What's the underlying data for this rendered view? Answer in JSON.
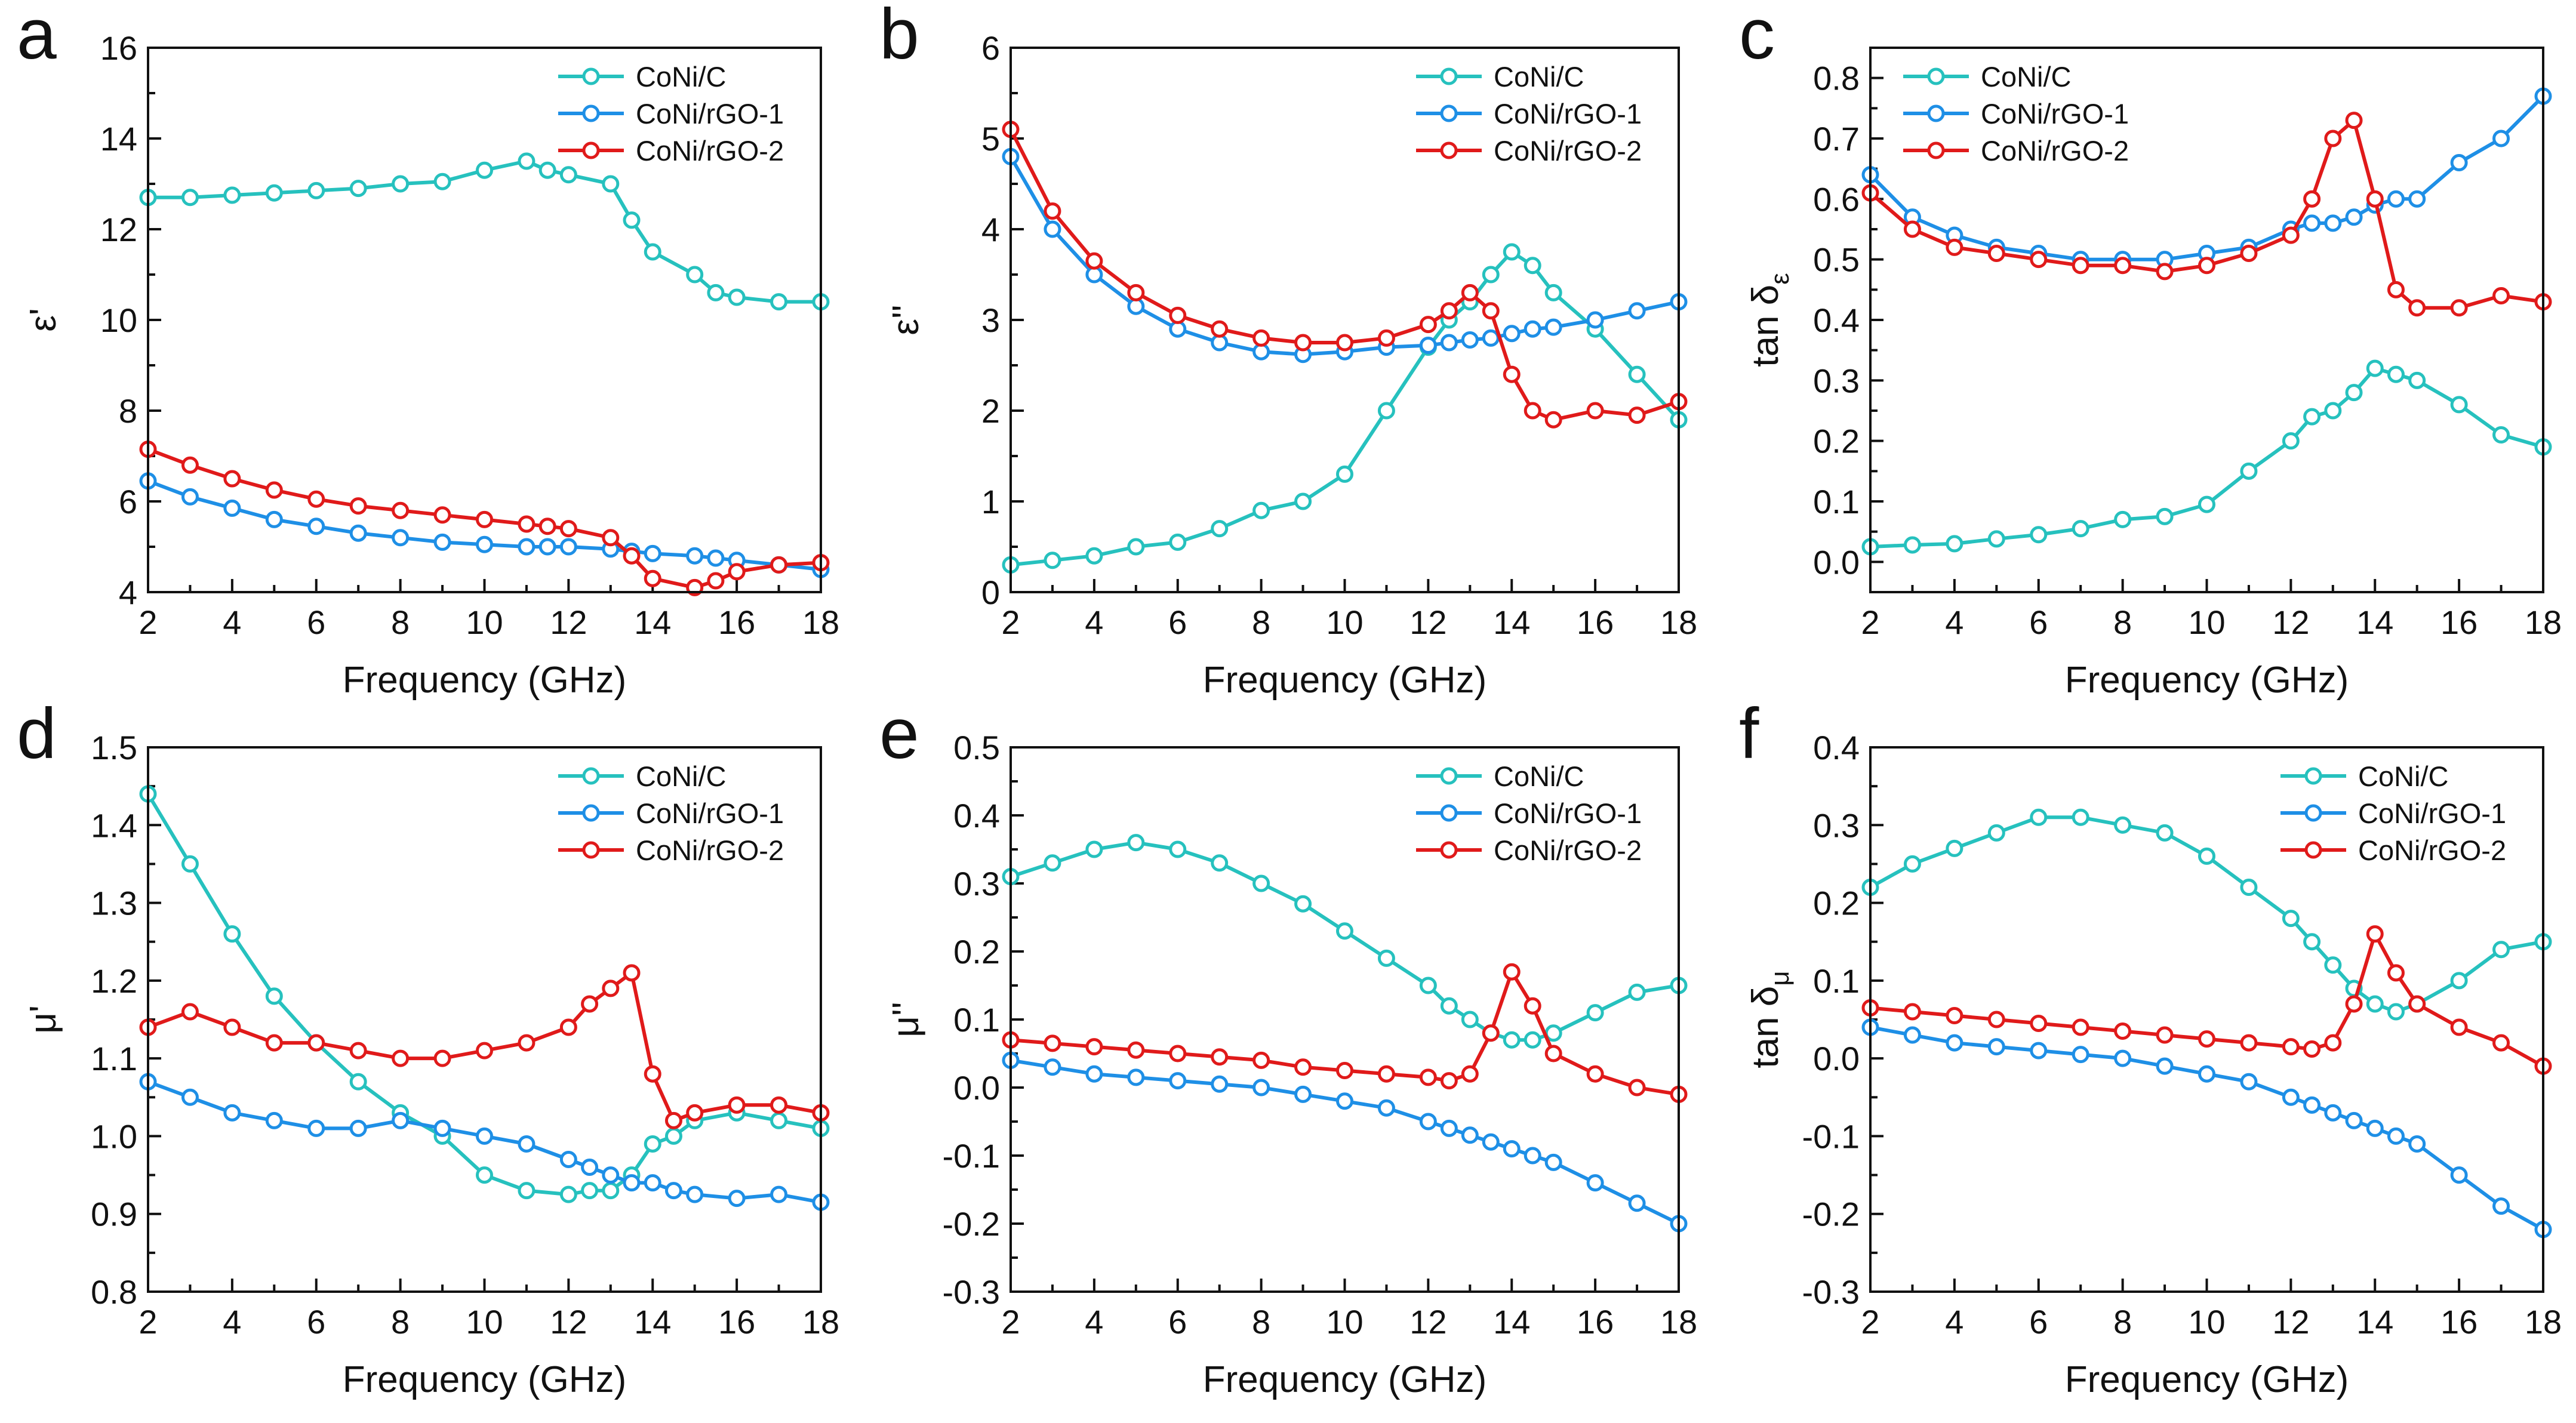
{
  "figure": {
    "series_names": [
      "CoNi/C",
      "CoNi/rGO-1",
      "CoNi/rGO-2"
    ],
    "colors": {
      "CoNi/C": "#26c1be",
      "CoNi/rGO-1": "#1e8fe6",
      "CoNi/rGO-2": "#e01a1a"
    }
  },
  "chart_data": [
    {
      "type": "line",
      "panel": "a",
      "xlabel": "Frequency (GHz)",
      "ylabel": "ε'",
      "ylabel_sub": "",
      "xlim": [
        2,
        18
      ],
      "ylim": [
        4,
        16
      ],
      "xticks": [
        2,
        4,
        6,
        8,
        10,
        12,
        14,
        16,
        18
      ],
      "yticks": [
        4,
        6,
        8,
        10,
        12,
        14,
        16
      ],
      "ytick_labels": [
        "4",
        "6",
        "8",
        "10",
        "12",
        "14",
        "16"
      ],
      "legend": "top-right",
      "x": [
        2,
        3,
        4,
        5,
        6,
        7,
        8,
        9,
        10,
        11,
        11.5,
        12,
        13,
        13.5,
        14,
        15,
        15.5,
        16,
        17,
        18
      ],
      "series": [
        {
          "name": "CoNi/C",
          "values": [
            12.7,
            12.7,
            12.75,
            12.8,
            12.85,
            12.9,
            13.0,
            13.05,
            13.3,
            13.5,
            13.3,
            13.2,
            13.0,
            12.2,
            11.5,
            11.0,
            10.6,
            10.5,
            10.4,
            10.4
          ]
        },
        {
          "name": "CoNi/rGO-1",
          "values": [
            6.45,
            6.1,
            5.85,
            5.6,
            5.45,
            5.3,
            5.2,
            5.1,
            5.05,
            5.0,
            5.0,
            5.0,
            4.95,
            4.9,
            4.85,
            4.8,
            4.75,
            4.7,
            4.6,
            4.5
          ]
        },
        {
          "name": "CoNi/rGO-2",
          "values": [
            7.15,
            6.8,
            6.5,
            6.25,
            6.05,
            5.9,
            5.8,
            5.7,
            5.6,
            5.5,
            5.45,
            5.4,
            5.2,
            4.8,
            4.3,
            4.1,
            4.25,
            4.45,
            4.6,
            4.65
          ]
        }
      ]
    },
    {
      "type": "line",
      "panel": "b",
      "xlabel": "Frequency (GHz)",
      "ylabel": "ε''",
      "ylabel_sub": "",
      "xlim": [
        2,
        18
      ],
      "ylim": [
        0,
        6
      ],
      "xticks": [
        2,
        4,
        6,
        8,
        10,
        12,
        14,
        16,
        18
      ],
      "yticks": [
        0,
        1,
        2,
        3,
        4,
        5,
        6
      ],
      "ytick_labels": [
        "0",
        "1",
        "2",
        "3",
        "4",
        "5",
        "6"
      ],
      "legend": "top-right",
      "x": [
        2,
        3,
        4,
        5,
        6,
        7,
        8,
        9,
        10,
        11,
        12,
        12.5,
        13,
        13.5,
        14,
        14.5,
        15,
        16,
        17,
        18
      ],
      "series": [
        {
          "name": "CoNi/C",
          "values": [
            0.3,
            0.35,
            0.4,
            0.5,
            0.55,
            0.7,
            0.9,
            1.0,
            1.3,
            2.0,
            2.7,
            3.0,
            3.2,
            3.5,
            3.75,
            3.6,
            3.3,
            2.9,
            2.4,
            1.9
          ]
        },
        {
          "name": "CoNi/rGO-1",
          "values": [
            4.8,
            4.0,
            3.5,
            3.15,
            2.9,
            2.75,
            2.65,
            2.62,
            2.65,
            2.7,
            2.72,
            2.75,
            2.78,
            2.8,
            2.85,
            2.9,
            2.92,
            3.0,
            3.1,
            3.2
          ]
        },
        {
          "name": "CoNi/rGO-2",
          "values": [
            5.1,
            4.2,
            3.65,
            3.3,
            3.05,
            2.9,
            2.8,
            2.75,
            2.75,
            2.8,
            2.95,
            3.1,
            3.3,
            3.1,
            2.4,
            2.0,
            1.9,
            2.0,
            1.95,
            2.1
          ]
        }
      ]
    },
    {
      "type": "line",
      "panel": "c",
      "xlabel": "Frequency (GHz)",
      "ylabel": "tan δ",
      "ylabel_sub": "ε",
      "xlim": [
        2,
        18
      ],
      "ylim": [
        -0.05,
        0.85
      ],
      "xticks": [
        2,
        4,
        6,
        8,
        10,
        12,
        14,
        16,
        18
      ],
      "yticks": [
        0.0,
        0.1,
        0.2,
        0.3,
        0.4,
        0.5,
        0.6,
        0.7,
        0.8
      ],
      "ytick_labels": [
        "0.0",
        "0.1",
        "0.2",
        "0.3",
        "0.4",
        "0.5",
        "0.6",
        "0.7",
        "0.8"
      ],
      "legend": "top-left",
      "x": [
        2,
        3,
        4,
        5,
        6,
        7,
        8,
        9,
        10,
        11,
        12,
        12.5,
        13,
        13.5,
        14,
        14.5,
        15,
        16,
        17,
        18
      ],
      "series": [
        {
          "name": "CoNi/C",
          "values": [
            0.025,
            0.028,
            0.03,
            0.038,
            0.045,
            0.055,
            0.07,
            0.075,
            0.095,
            0.15,
            0.2,
            0.24,
            0.25,
            0.28,
            0.32,
            0.31,
            0.3,
            0.26,
            0.21,
            0.19
          ]
        },
        {
          "name": "CoNi/rGO-1",
          "values": [
            0.64,
            0.57,
            0.54,
            0.52,
            0.51,
            0.5,
            0.5,
            0.5,
            0.51,
            0.52,
            0.55,
            0.56,
            0.56,
            0.57,
            0.59,
            0.6,
            0.6,
            0.66,
            0.7,
            0.77
          ]
        },
        {
          "name": "CoNi/rGO-2",
          "values": [
            0.61,
            0.55,
            0.52,
            0.51,
            0.5,
            0.49,
            0.49,
            0.48,
            0.49,
            0.51,
            0.54,
            0.6,
            0.7,
            0.73,
            0.6,
            0.45,
            0.42,
            0.42,
            0.44,
            0.43
          ]
        }
      ]
    },
    {
      "type": "line",
      "panel": "d",
      "xlabel": "Frequency (GHz)",
      "ylabel": "μ'",
      "ylabel_sub": "",
      "xlim": [
        2,
        18
      ],
      "ylim": [
        0.8,
        1.5
      ],
      "xticks": [
        2,
        4,
        6,
        8,
        10,
        12,
        14,
        16,
        18
      ],
      "yticks": [
        0.8,
        0.9,
        1.0,
        1.1,
        1.2,
        1.3,
        1.4,
        1.5
      ],
      "ytick_labels": [
        "0.8",
        "0.9",
        "1.0",
        "1.1",
        "1.2",
        "1.3",
        "1.4",
        "1.5"
      ],
      "legend": "top-right",
      "x": [
        2,
        3,
        4,
        5,
        6,
        7,
        8,
        9,
        10,
        11,
        12,
        12.5,
        13,
        13.5,
        14,
        14.5,
        15,
        16,
        17,
        18
      ],
      "series": [
        {
          "name": "CoNi/C",
          "values": [
            1.44,
            1.35,
            1.26,
            1.18,
            1.12,
            1.07,
            1.03,
            1.0,
            0.95,
            0.93,
            0.925,
            0.93,
            0.93,
            0.95,
            0.99,
            1.0,
            1.02,
            1.03,
            1.02,
            1.01
          ]
        },
        {
          "name": "CoNi/rGO-1",
          "values": [
            1.07,
            1.05,
            1.03,
            1.02,
            1.01,
            1.01,
            1.02,
            1.01,
            1.0,
            0.99,
            0.97,
            0.96,
            0.95,
            0.94,
            0.94,
            0.93,
            0.925,
            0.92,
            0.925,
            0.915
          ]
        },
        {
          "name": "CoNi/rGO-2",
          "values": [
            1.14,
            1.16,
            1.14,
            1.12,
            1.12,
            1.11,
            1.1,
            1.1,
            1.11,
            1.12,
            1.14,
            1.17,
            1.19,
            1.21,
            1.08,
            1.02,
            1.03,
            1.04,
            1.04,
            1.03
          ]
        }
      ]
    },
    {
      "type": "line",
      "panel": "e",
      "xlabel": "Frequency (GHz)",
      "ylabel": "μ''",
      "ylabel_sub": "",
      "xlim": [
        2,
        18
      ],
      "ylim": [
        -0.3,
        0.5
      ],
      "xticks": [
        2,
        4,
        6,
        8,
        10,
        12,
        14,
        16,
        18
      ],
      "yticks": [
        -0.3,
        -0.2,
        -0.1,
        0.0,
        0.1,
        0.2,
        0.3,
        0.4,
        0.5
      ],
      "ytick_labels": [
        "-0.3",
        "-0.2",
        "-0.1",
        "0.0",
        "0.1",
        "0.2",
        "0.3",
        "0.4",
        "0.5"
      ],
      "legend": "top-right",
      "x": [
        2,
        3,
        4,
        5,
        6,
        7,
        8,
        9,
        10,
        11,
        12,
        12.5,
        13,
        13.5,
        14,
        14.5,
        15,
        16,
        17,
        18
      ],
      "series": [
        {
          "name": "CoNi/C",
          "values": [
            0.31,
            0.33,
            0.35,
            0.36,
            0.35,
            0.33,
            0.3,
            0.27,
            0.23,
            0.19,
            0.15,
            0.12,
            0.1,
            0.08,
            0.07,
            0.07,
            0.08,
            0.11,
            0.14,
            0.15
          ]
        },
        {
          "name": "CoNi/rGO-1",
          "values": [
            0.04,
            0.03,
            0.02,
            0.015,
            0.01,
            0.005,
            0.0,
            -0.01,
            -0.02,
            -0.03,
            -0.05,
            -0.06,
            -0.07,
            -0.08,
            -0.09,
            -0.1,
            -0.11,
            -0.14,
            -0.17,
            -0.2
          ]
        },
        {
          "name": "CoNi/rGO-2",
          "values": [
            0.07,
            0.065,
            0.06,
            0.055,
            0.05,
            0.045,
            0.04,
            0.03,
            0.025,
            0.02,
            0.015,
            0.01,
            0.02,
            0.08,
            0.17,
            0.12,
            0.05,
            0.02,
            0.0,
            -0.01
          ]
        }
      ]
    },
    {
      "type": "line",
      "panel": "f",
      "xlabel": "Frequency (GHz)",
      "ylabel": "tan δ",
      "ylabel_sub": "μ",
      "xlim": [
        2,
        18
      ],
      "ylim": [
        -0.3,
        0.4
      ],
      "xticks": [
        2,
        4,
        6,
        8,
        10,
        12,
        14,
        16,
        18
      ],
      "yticks": [
        -0.3,
        -0.2,
        -0.1,
        0.0,
        0.1,
        0.2,
        0.3,
        0.4
      ],
      "ytick_labels": [
        "-0.3",
        "-0.2",
        "-0.1",
        "0.0",
        "0.1",
        "0.2",
        "0.3",
        "0.4"
      ],
      "legend": "top-right",
      "x": [
        2,
        3,
        4,
        5,
        6,
        7,
        8,
        9,
        10,
        11,
        12,
        12.5,
        13,
        13.5,
        14,
        14.5,
        15,
        16,
        17,
        18
      ],
      "series": [
        {
          "name": "CoNi/C",
          "values": [
            0.22,
            0.25,
            0.27,
            0.29,
            0.31,
            0.31,
            0.3,
            0.29,
            0.26,
            0.22,
            0.18,
            0.15,
            0.12,
            0.09,
            0.07,
            0.06,
            0.07,
            0.1,
            0.14,
            0.15
          ]
        },
        {
          "name": "CoNi/rGO-1",
          "values": [
            0.04,
            0.03,
            0.02,
            0.015,
            0.01,
            0.005,
            0.0,
            -0.01,
            -0.02,
            -0.03,
            -0.05,
            -0.06,
            -0.07,
            -0.08,
            -0.09,
            -0.1,
            -0.11,
            -0.15,
            -0.19,
            -0.22
          ]
        },
        {
          "name": "CoNi/rGO-2",
          "values": [
            0.065,
            0.06,
            0.055,
            0.05,
            0.045,
            0.04,
            0.035,
            0.03,
            0.025,
            0.02,
            0.015,
            0.012,
            0.02,
            0.07,
            0.16,
            0.11,
            0.07,
            0.04,
            0.02,
            -0.01
          ]
        }
      ]
    }
  ]
}
